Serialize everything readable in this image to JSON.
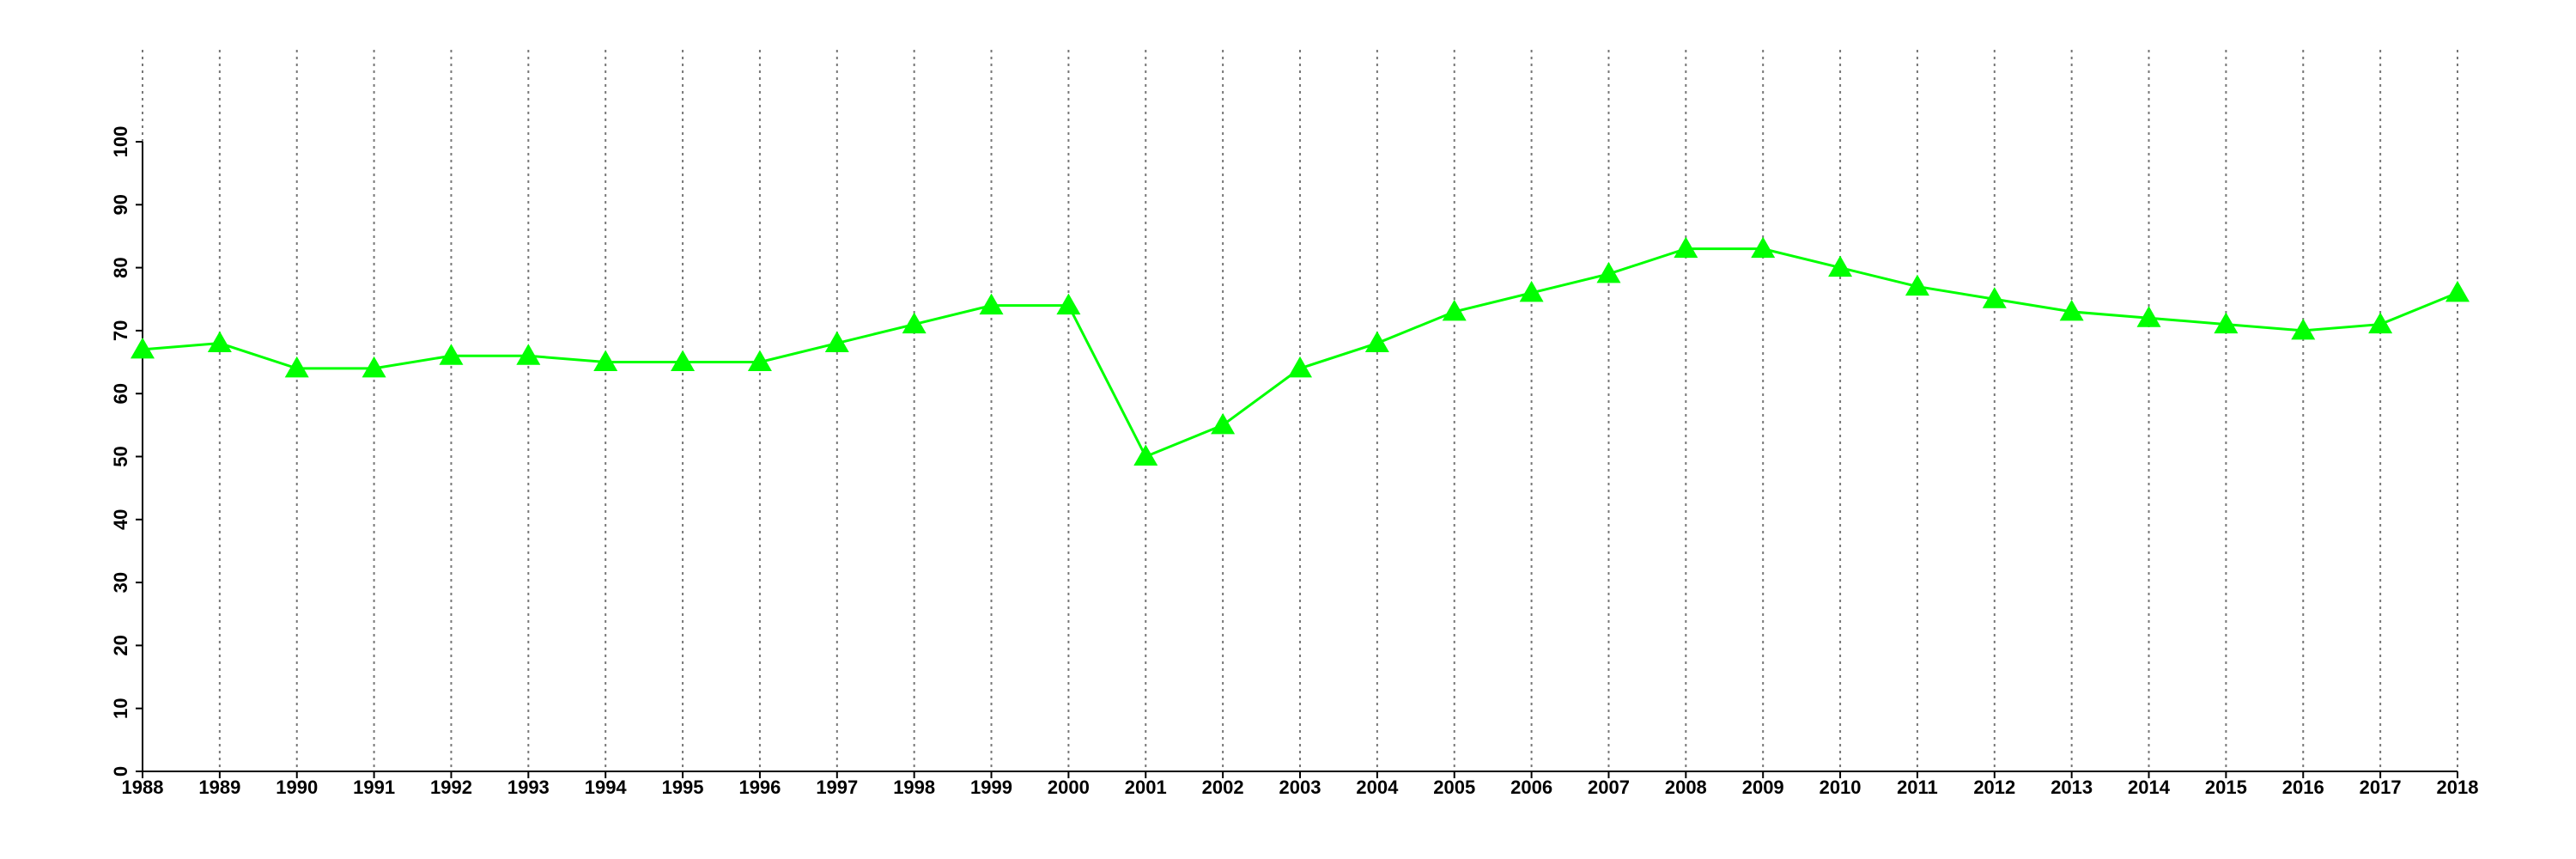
{
  "chart_data": {
    "type": "line",
    "x": [
      1988,
      1989,
      1990,
      1991,
      1992,
      1993,
      1994,
      1995,
      1996,
      1997,
      1998,
      1999,
      2000,
      2001,
      2002,
      2003,
      2004,
      2005,
      2006,
      2007,
      2008,
      2009,
      2010,
      2011,
      2012,
      2013,
      2014,
      2015,
      2016,
      2017,
      2018
    ],
    "values": [
      67,
      68,
      64,
      64,
      66,
      66,
      65,
      65,
      65,
      68,
      71,
      74,
      74,
      50,
      55,
      64,
      68,
      73,
      76,
      79,
      83,
      83,
      80,
      77,
      75,
      73,
      72,
      71,
      70,
      71,
      76
    ],
    "color": "#00ff00",
    "marker": "triangle",
    "xlim": [
      1988,
      2018
    ],
    "xticks": [
      1988,
      1989,
      1990,
      1991,
      1992,
      1993,
      1994,
      1995,
      1996,
      1997,
      1998,
      1999,
      2000,
      2001,
      2002,
      2003,
      2004,
      2005,
      2006,
      2007,
      2008,
      2009,
      2010,
      2011,
      2012,
      2013,
      2014,
      2015,
      2016,
      2017,
      2018
    ],
    "ylim": [
      0,
      100
    ],
    "yticks": [
      0,
      10,
      20,
      30,
      40,
      50,
      60,
      70,
      80,
      90,
      100
    ],
    "grid": "x"
  }
}
